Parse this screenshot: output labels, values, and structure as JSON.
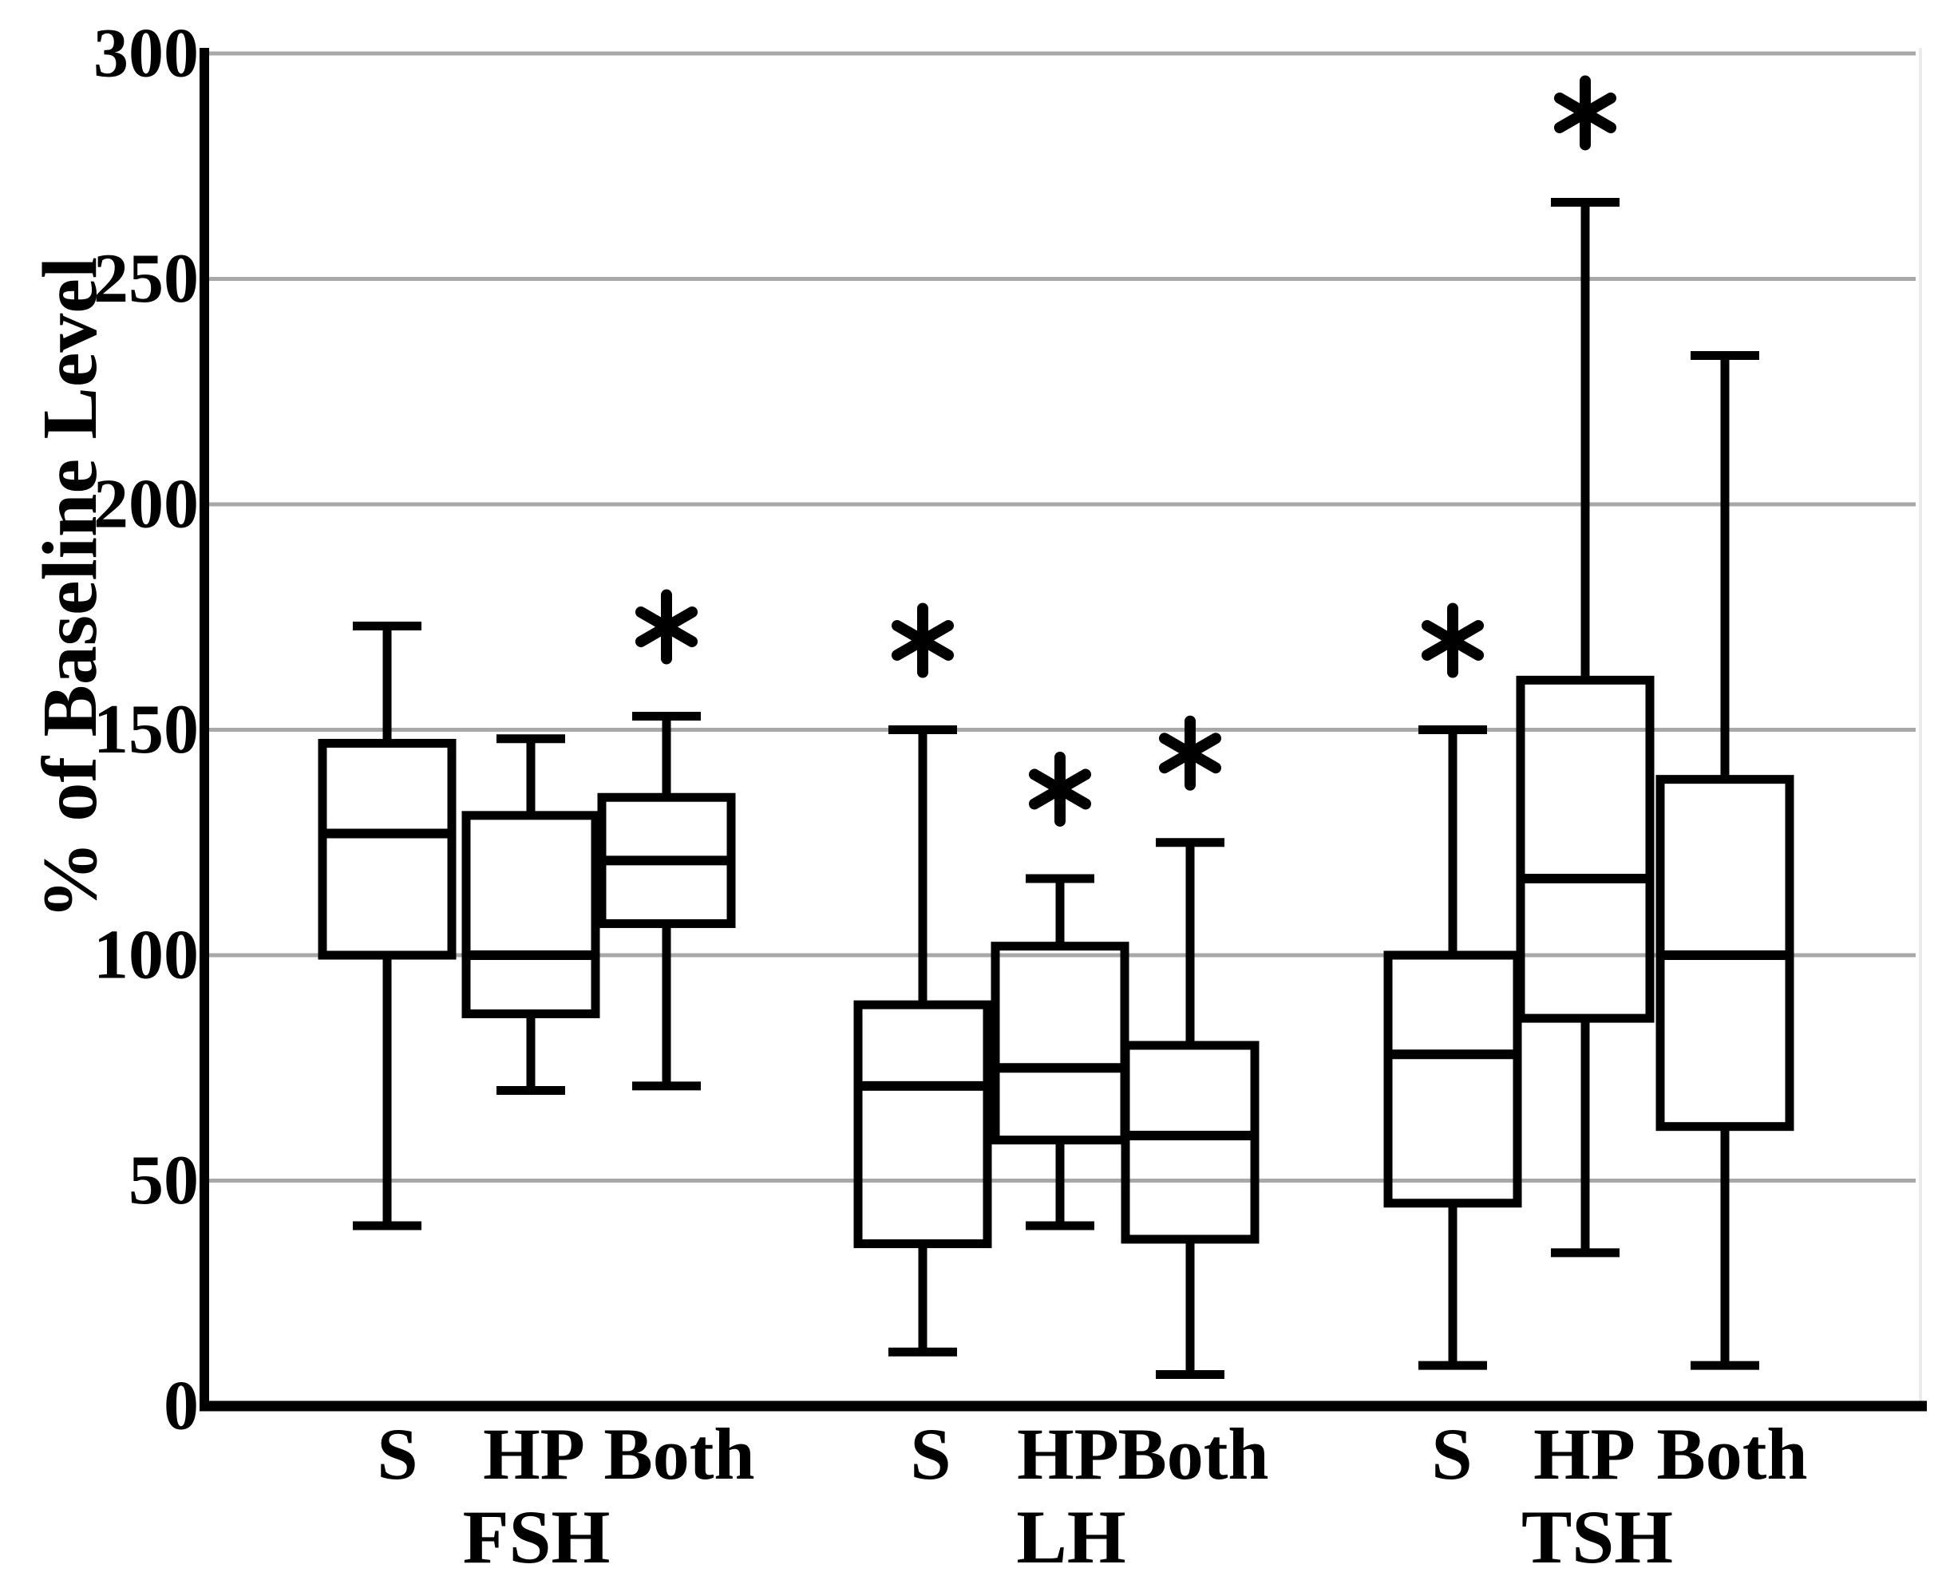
{
  "chart_data": {
    "type": "boxplot",
    "title": "",
    "xlabel": "",
    "ylabel": "% of Baseline Level",
    "ylim": [
      0,
      300
    ],
    "yticks": [
      0,
      50,
      100,
      150,
      200,
      250,
      300
    ],
    "grid": "horizontal",
    "legend": "none",
    "colors": {
      "background": "#FFFFFF",
      "axis": "#000000",
      "box_stroke": "#000000",
      "gridline": "#A8A8A8",
      "plot_right_edge": "#ECECEC"
    },
    "significance_marker": "asterisk",
    "significance_marker_glyph": "*",
    "groups": [
      {
        "label": "FSH",
        "boxes": [
          {
            "condition": "S",
            "whisker_low": 40,
            "q1": 100,
            "median": 127,
            "q3": 147,
            "whisker_high": 173,
            "significant": false
          },
          {
            "condition": "HP",
            "whisker_low": 70,
            "q1": 87,
            "median": 100,
            "q3": 131,
            "whisker_high": 148,
            "significant": false
          },
          {
            "condition": "Both",
            "whisker_low": 71,
            "q1": 107,
            "median": 121,
            "q3": 135,
            "whisker_high": 153,
            "significant": true
          }
        ]
      },
      {
        "label": "LH",
        "boxes": [
          {
            "condition": "S",
            "whisker_low": 12,
            "q1": 36,
            "median": 71,
            "q3": 89,
            "whisker_high": 150,
            "significant": true
          },
          {
            "condition": "HP",
            "whisker_low": 40,
            "q1": 59,
            "median": 75,
            "q3": 102,
            "whisker_high": 117,
            "significant": true
          },
          {
            "condition": "Both",
            "whisker_low": 7,
            "q1": 37,
            "median": 60,
            "q3": 80,
            "whisker_high": 125,
            "significant": true
          }
        ]
      },
      {
        "label": "TSH",
        "boxes": [
          {
            "condition": "S",
            "whisker_low": 9,
            "q1": 45,
            "median": 78,
            "q3": 100,
            "whisker_high": 150,
            "significant": true
          },
          {
            "condition": "HP",
            "whisker_low": 34,
            "q1": 86,
            "median": 117,
            "q3": 161,
            "whisker_high": 267,
            "significant": true
          },
          {
            "condition": "Both",
            "whisker_low": 9,
            "q1": 62,
            "median": 100,
            "q3": 139,
            "whisker_high": 233,
            "significant": false
          }
        ]
      }
    ]
  }
}
